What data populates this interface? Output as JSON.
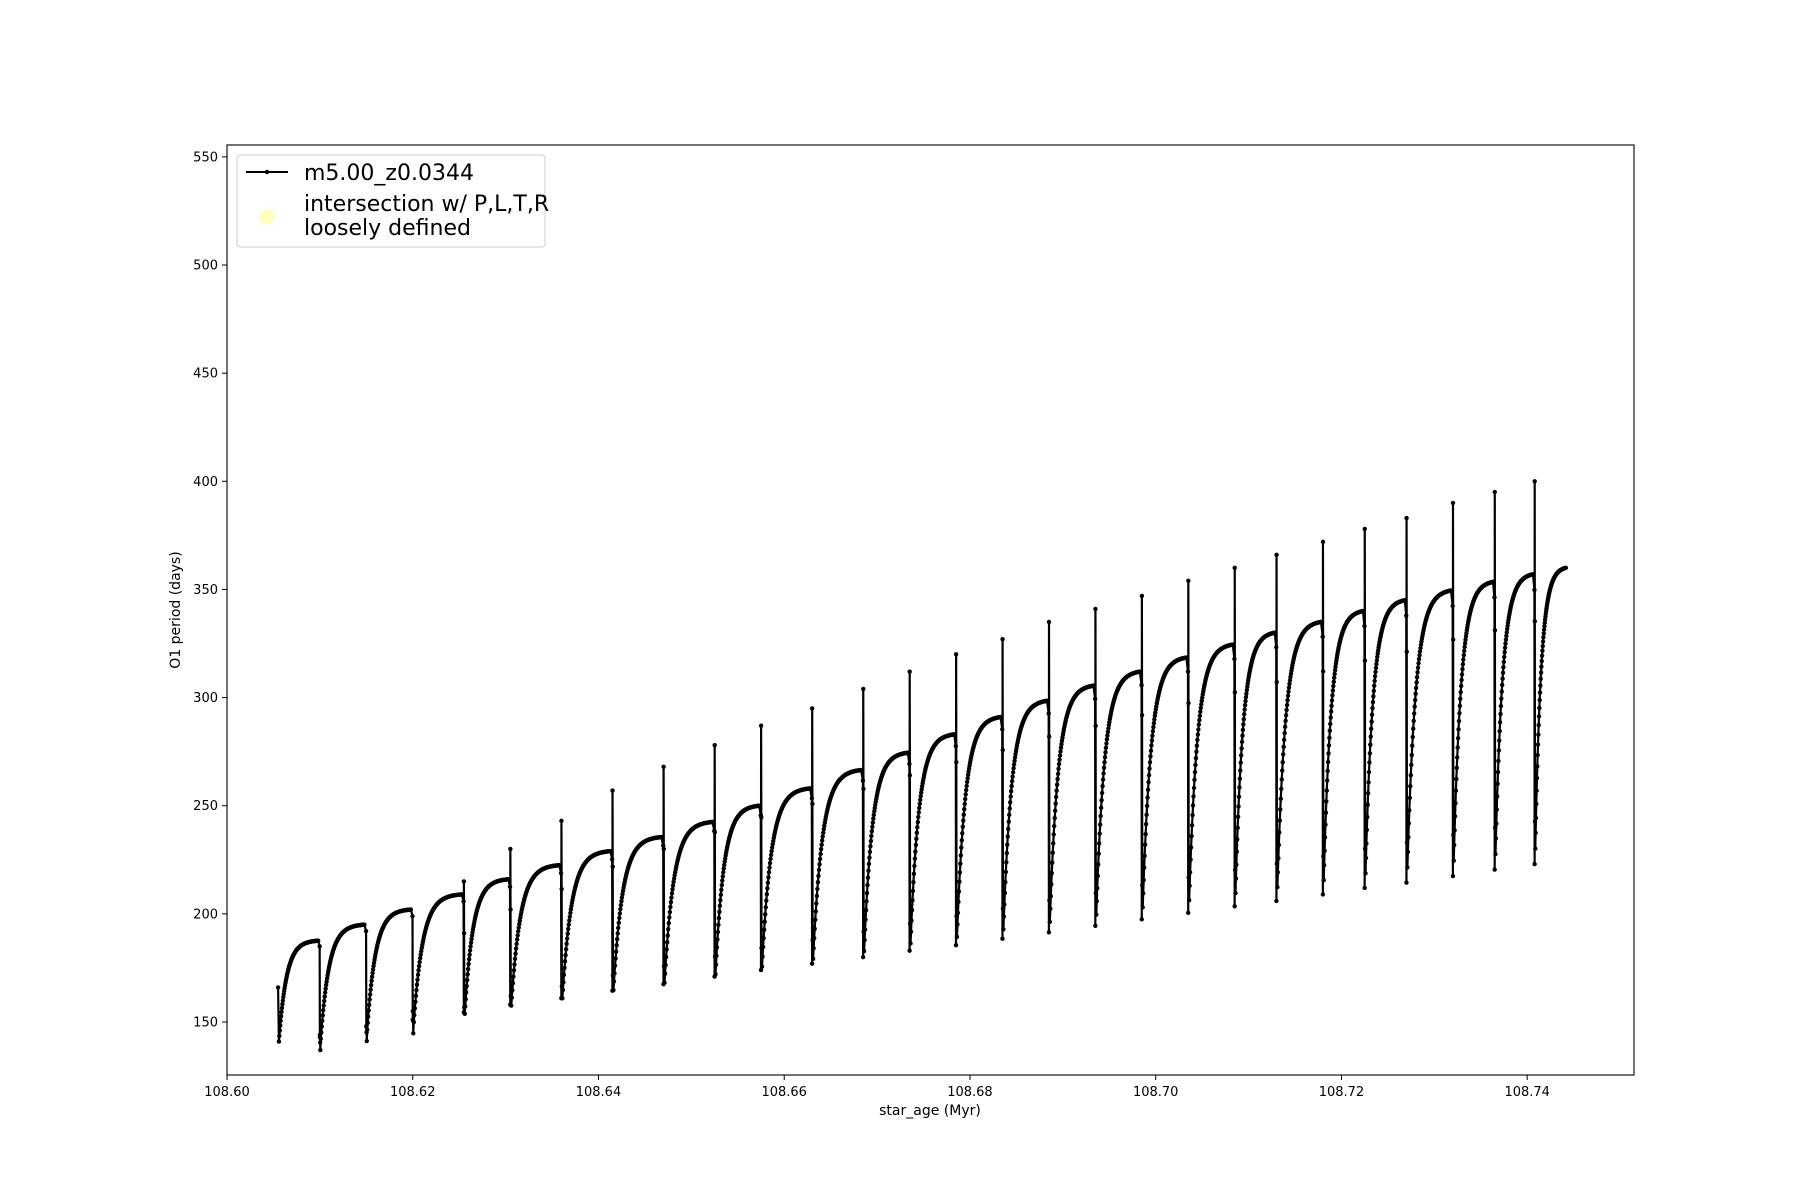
{
  "chart_data": {
    "type": "line",
    "xlabel": "star_age (Myr)",
    "ylabel": "O1 period (days)",
    "xlim": [
      108.6,
      108.7515
    ],
    "ylim": [
      125.5,
      555.5
    ],
    "xticks": [
      "108.60",
      "108.62",
      "108.64",
      "108.66",
      "108.68",
      "108.70",
      "108.72",
      "108.74"
    ],
    "yticks": [
      "150",
      "200",
      "250",
      "300",
      "350",
      "400",
      "450",
      "500",
      "550"
    ],
    "grid": false,
    "legend_position": "top-left",
    "legend": [
      {
        "label": "m5.00_z0.0344",
        "marker": "line-with-dots",
        "color": "#000000"
      },
      {
        "label_line1": "intersection w/ P,L,T,R",
        "label_line2": "loosely defined",
        "marker": "circle",
        "color": "#ffffb0"
      }
    ],
    "series": [
      {
        "name": "m5.00_z0.0344",
        "color": "#000000",
        "cycles": [
          {
            "start": 108.6055,
            "end": 108.61,
            "min": 135.5,
            "max": 187.6,
            "spike": 166.0
          },
          {
            "start": 108.61,
            "end": 108.615,
            "min": 136.0,
            "max": 195.0,
            "spike": 143.0
          },
          {
            "start": 108.615,
            "end": 108.62,
            "min": 140.0,
            "max": 202.0,
            "spike": 148.0
          },
          {
            "start": 108.62,
            "end": 108.6255,
            "min": 143.0,
            "max": 209.0,
            "spike": 155.0
          },
          {
            "start": 108.6255,
            "end": 108.6305,
            "min": 146.5,
            "max": 216.0,
            "spike": 215.0
          },
          {
            "start": 108.6305,
            "end": 108.636,
            "min": 150.0,
            "max": 222.5,
            "spike": 230.0
          },
          {
            "start": 108.636,
            "end": 108.6415,
            "min": 153.0,
            "max": 229.0,
            "spike": 243.0
          },
          {
            "start": 108.6415,
            "end": 108.647,
            "min": 156.5,
            "max": 235.5,
            "spike": 257.0
          },
          {
            "start": 108.647,
            "end": 108.6525,
            "min": 159.5,
            "max": 242.5,
            "spike": 268.0
          },
          {
            "start": 108.6525,
            "end": 108.6575,
            "min": 163.0,
            "max": 250.0,
            "spike": 278.0
          },
          {
            "start": 108.6575,
            "end": 108.663,
            "min": 166.0,
            "max": 258.0,
            "spike": 287.0
          },
          {
            "start": 108.663,
            "end": 108.6685,
            "min": 169.0,
            "max": 266.5,
            "spike": 295.0
          },
          {
            "start": 108.6685,
            "end": 108.6735,
            "min": 172.0,
            "max": 274.5,
            "spike": 304.0
          },
          {
            "start": 108.6735,
            "end": 108.6785,
            "min": 175.0,
            "max": 283.0,
            "spike": 312.0
          },
          {
            "start": 108.6785,
            "end": 108.6835,
            "min": 177.5,
            "max": 291.0,
            "spike": 320.0
          },
          {
            "start": 108.6835,
            "end": 108.6885,
            "min": 180.5,
            "max": 298.5,
            "spike": 327.0
          },
          {
            "start": 108.6885,
            "end": 108.6935,
            "min": 183.5,
            "max": 305.5,
            "spike": 335.0
          },
          {
            "start": 108.6935,
            "end": 108.6985,
            "min": 186.5,
            "max": 312.0,
            "spike": 341.0
          },
          {
            "start": 108.6985,
            "end": 108.7035,
            "min": 189.5,
            "max": 318.5,
            "spike": 347.0
          },
          {
            "start": 108.7035,
            "end": 108.7085,
            "min": 192.5,
            "max": 324.5,
            "spike": 354.0
          },
          {
            "start": 108.7085,
            "end": 108.713,
            "min": 195.5,
            "max": 330.0,
            "spike": 360.0
          },
          {
            "start": 108.713,
            "end": 108.718,
            "min": 198.0,
            "max": 335.0,
            "spike": 366.0
          },
          {
            "start": 108.718,
            "end": 108.7225,
            "min": 201.0,
            "max": 340.0,
            "spike": 372.0
          },
          {
            "start": 108.7225,
            "end": 108.727,
            "min": 204.0,
            "max": 345.0,
            "spike": 378.0
          },
          {
            "start": 108.727,
            "end": 108.732,
            "min": 206.5,
            "max": 349.5,
            "spike": 383.0
          },
          {
            "start": 108.732,
            "end": 108.7365,
            "min": 209.5,
            "max": 353.5,
            "spike": 390.0
          },
          {
            "start": 108.7365,
            "end": 108.7408,
            "min": 212.5,
            "max": 357.0,
            "spike": 395.0
          },
          {
            "start": 108.7408,
            "end": 108.7443,
            "min": 215.0,
            "max": 360.0,
            "spike": 400.0
          }
        ]
      }
    ]
  }
}
